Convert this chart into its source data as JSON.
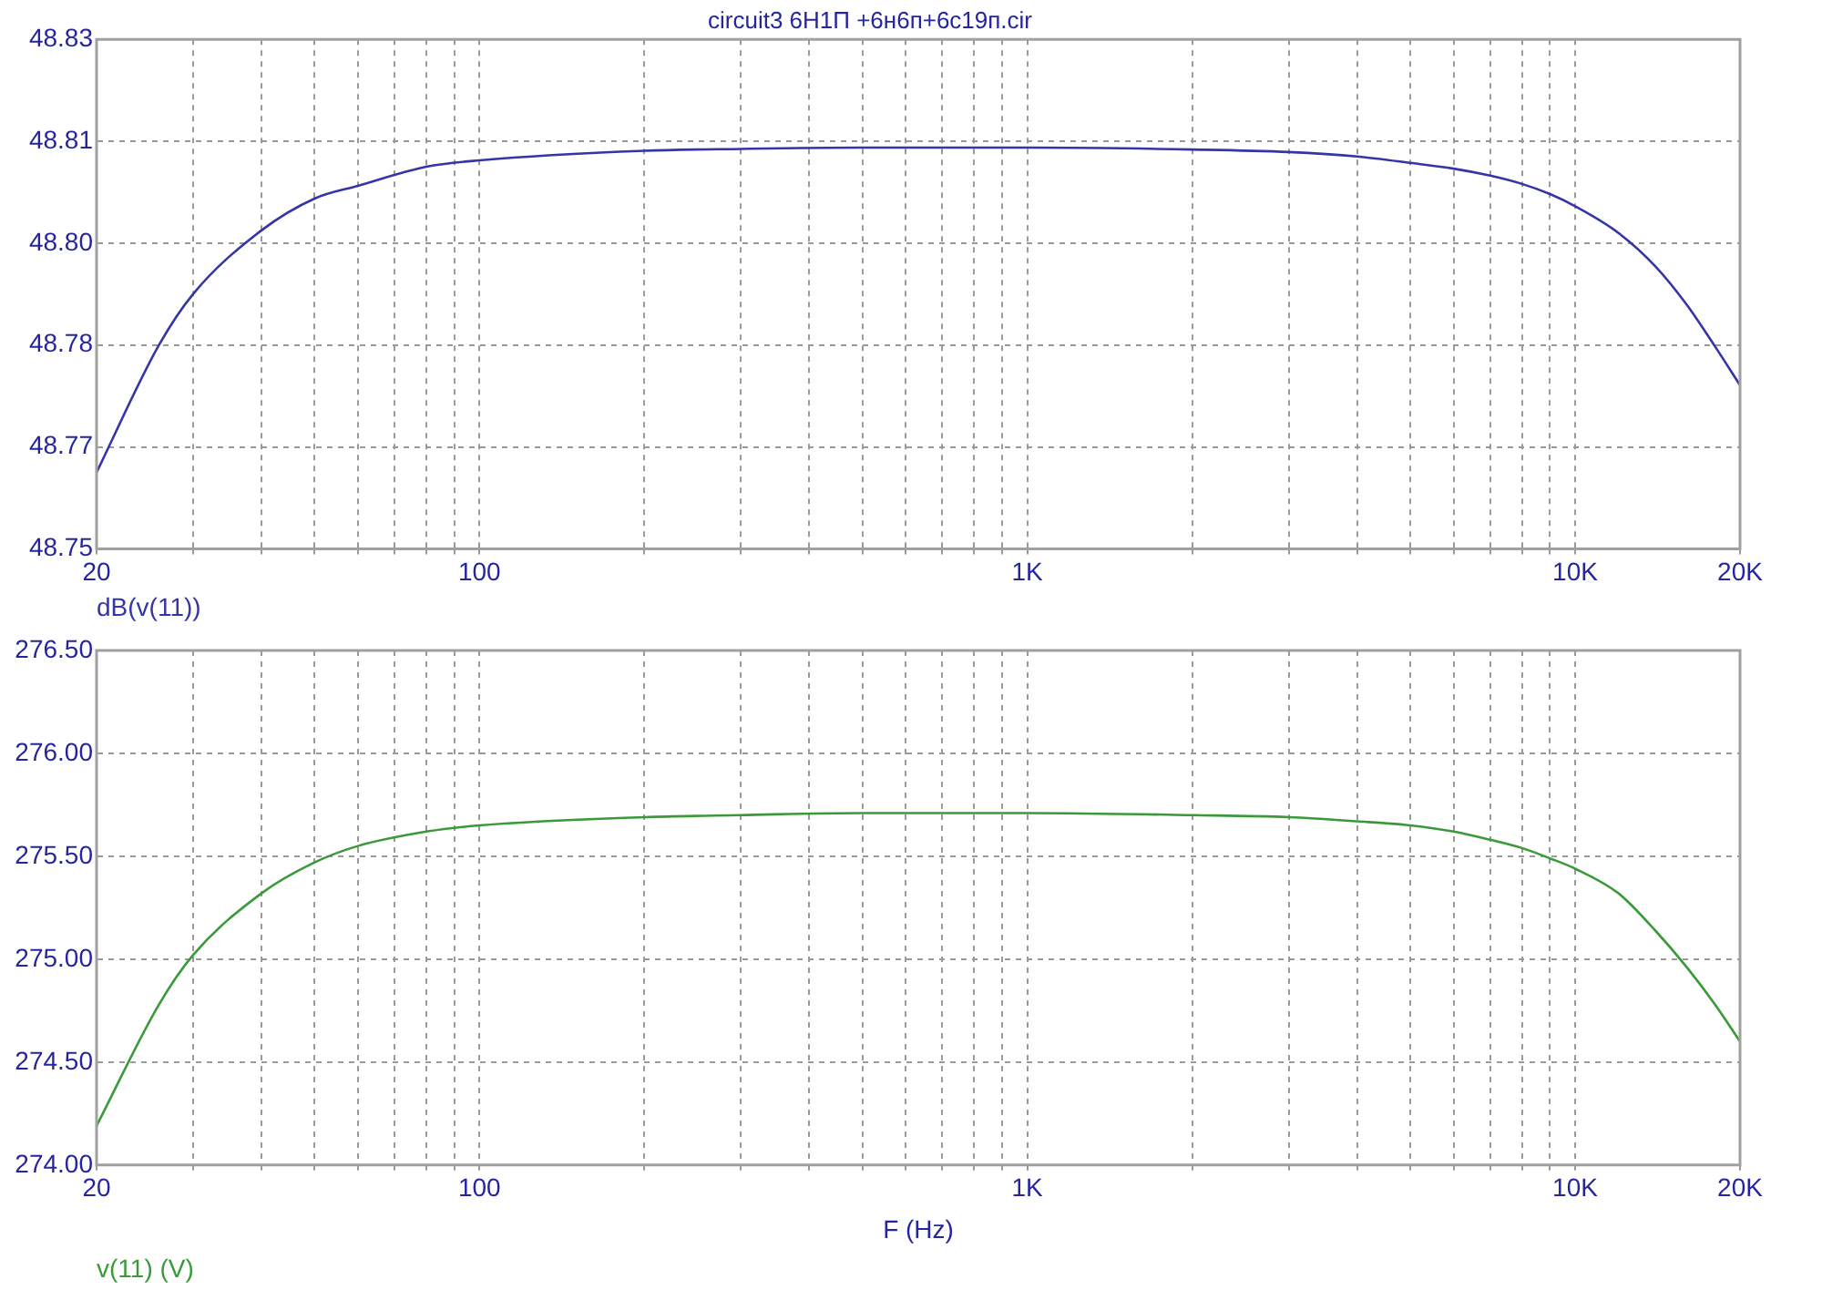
{
  "chart_data": [
    {
      "type": "line",
      "title": "circuit3 6Н1П +6н6п+6с19п.cir",
      "x": [
        20,
        26,
        30,
        40,
        50,
        60,
        80,
        100,
        200,
        300,
        500,
        1000,
        2000,
        3000,
        4000,
        5000,
        6000,
        7000,
        8000,
        9000,
        10000,
        12000,
        14000,
        16000,
        18000,
        20000
      ],
      "series": [
        {
          "name": "dB(v(11))",
          "color": "#3535a8",
          "values": [
            48.762,
            48.782,
            48.79,
            48.8,
            48.805,
            48.807,
            48.81,
            48.811,
            48.8125,
            48.8128,
            48.813,
            48.813,
            48.8127,
            48.8123,
            48.8116,
            48.8106,
            48.8097,
            48.8086,
            48.8073,
            48.8057,
            48.8038,
            48.7996,
            48.7944,
            48.7883,
            48.7818,
            48.7757
          ]
        }
      ],
      "log": "x",
      "xlim": [
        20,
        20000
      ],
      "xticks": [
        {
          "value": 20,
          "label": "20"
        },
        {
          "value": 30,
          "label": null
        },
        {
          "value": 40,
          "label": null
        },
        {
          "value": 50,
          "label": null
        },
        {
          "value": 60,
          "label": null
        },
        {
          "value": 70,
          "label": null
        },
        {
          "value": 80,
          "label": null
        },
        {
          "value": 90,
          "label": null
        },
        {
          "value": 100,
          "label": "100"
        },
        {
          "value": 200,
          "label": null
        },
        {
          "value": 300,
          "label": null
        },
        {
          "value": 400,
          "label": null
        },
        {
          "value": 500,
          "label": null
        },
        {
          "value": 600,
          "label": null
        },
        {
          "value": 700,
          "label": null
        },
        {
          "value": 800,
          "label": null
        },
        {
          "value": 900,
          "label": null
        },
        {
          "value": 1000,
          "label": "1K"
        },
        {
          "value": 2000,
          "label": null
        },
        {
          "value": 3000,
          "label": null
        },
        {
          "value": 4000,
          "label": null
        },
        {
          "value": 5000,
          "label": null
        },
        {
          "value": 6000,
          "label": null
        },
        {
          "value": 7000,
          "label": null
        },
        {
          "value": 8000,
          "label": null
        },
        {
          "value": 9000,
          "label": null
        },
        {
          "value": 10000,
          "label": "10K"
        },
        {
          "value": 20000,
          "label": "20K"
        }
      ],
      "ylim": [
        48.75,
        48.83
      ],
      "yticks": [
        48.75,
        {
          "value": 48.766,
          "label": "48.77"
        },
        {
          "value": 48.782,
          "label": "48.78"
        },
        {
          "value": 48.798,
          "label": "48.80"
        },
        {
          "value": 48.814,
          "label": "48.81"
        },
        48.83
      ],
      "grid": true,
      "legend": "bottom left",
      "marker": "none",
      "line_style": "solid"
    },
    {
      "type": "line",
      "xlabel": "F (Hz)",
      "x": [
        20,
        26,
        30,
        40,
        50,
        60,
        80,
        100,
        200,
        300,
        500,
        1000,
        2000,
        3000,
        4000,
        5000,
        6000,
        7000,
        8000,
        9000,
        10000,
        12000,
        14000,
        16000,
        18000,
        20000
      ],
      "series": [
        {
          "name": "v(11) (V)",
          "color": "#3a9a3a",
          "values": [
            274.19,
            274.78,
            275.02,
            275.32,
            275.47,
            275.55,
            275.62,
            275.65,
            275.69,
            275.7,
            275.71,
            275.71,
            275.7,
            275.69,
            275.67,
            275.65,
            275.62,
            275.58,
            275.54,
            275.49,
            275.44,
            275.32,
            275.14,
            274.96,
            274.78,
            274.6
          ]
        }
      ],
      "log": "x",
      "xlim": [
        20,
        20000
      ],
      "xticks": [
        {
          "value": 20,
          "label": "20"
        },
        {
          "value": 30,
          "label": null
        },
        {
          "value": 40,
          "label": null
        },
        {
          "value": 50,
          "label": null
        },
        {
          "value": 60,
          "label": null
        },
        {
          "value": 70,
          "label": null
        },
        {
          "value": 80,
          "label": null
        },
        {
          "value": 90,
          "label": null
        },
        {
          "value": 100,
          "label": "100"
        },
        {
          "value": 200,
          "label": null
        },
        {
          "value": 300,
          "label": null
        },
        {
          "value": 400,
          "label": null
        },
        {
          "value": 500,
          "label": null
        },
        {
          "value": 600,
          "label": null
        },
        {
          "value": 700,
          "label": null
        },
        {
          "value": 800,
          "label": null
        },
        {
          "value": 900,
          "label": null
        },
        {
          "value": 1000,
          "label": "1K"
        },
        {
          "value": 2000,
          "label": null
        },
        {
          "value": 3000,
          "label": null
        },
        {
          "value": 4000,
          "label": null
        },
        {
          "value": 5000,
          "label": null
        },
        {
          "value": 6000,
          "label": null
        },
        {
          "value": 7000,
          "label": null
        },
        {
          "value": 8000,
          "label": null
        },
        {
          "value": 9000,
          "label": null
        },
        {
          "value": 10000,
          "label": "10K"
        },
        {
          "value": 20000,
          "label": "20K"
        }
      ],
      "ylim": [
        274,
        276.5
      ],
      "yticks": [
        {
          "value": 274,
          "label": "274.00"
        },
        {
          "value": 274.5,
          "label": "274.50"
        },
        {
          "value": 275,
          "label": "275.00"
        },
        {
          "value": 275.5,
          "label": "275.50"
        },
        {
          "value": 276,
          "label": "276.00"
        },
        {
          "value": 276.5,
          "label": "276.50"
        }
      ],
      "grid": true,
      "legend": "bottom left",
      "marker": "none",
      "line_style": "solid"
    }
  ]
}
